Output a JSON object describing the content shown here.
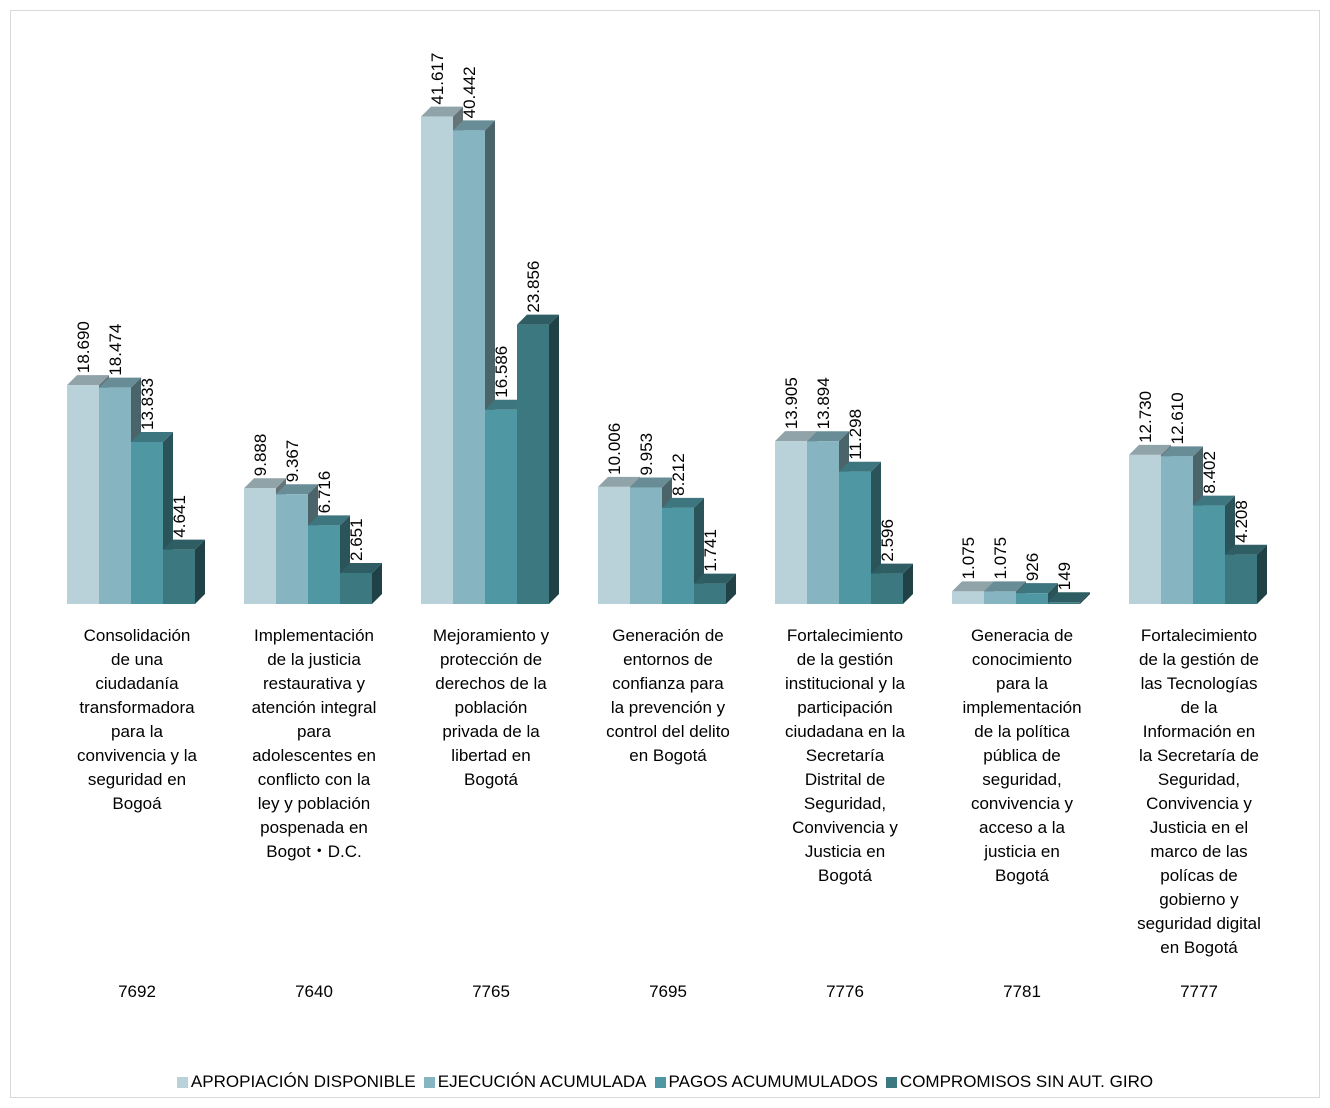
{
  "chart_data": {
    "type": "bar",
    "categories": [
      "Consolidación de una ciudadanía transformadora para la convivencia y la seguridad en Bogoá",
      "Implementación de la justicia restaurativa y atención integral para adolescentes en conflicto con la ley y población pospenada en Bogot・D.C.",
      "Mejoramiento y protección de derechos de la población privada de la libertad en Bogotá",
      "Generación de entornos de confianza para la prevención y control del delito en Bogotá",
      "Fortalecimiento de la gestión institucional y la participación ciudadana en la Secretaría Distrital de Seguridad, Convivencia y Justicia en Bogotá",
      "Generacia de conocimiento para la implementación de la política pública de seguridad, convivencia y acceso a la justicia en Bogotá",
      "Fortalecimiento de la gestión de las Tecnologías de la Información en la Secretaría de Seguridad, Convivencia y Justicia en el marco de las polícas de gobierno y seguridad digital en Bogotá"
    ],
    "category_lines": [
      [
        "Consolidación",
        "de una",
        "ciudadanía",
        "transformadora",
        "para la",
        "convivencia y la",
        "seguridad en",
        "Bogoá"
      ],
      [
        "Implementación",
        "de la justicia",
        "restaurativa y",
        "atención integral",
        "para",
        "adolescentes en",
        "conflicto con la",
        "ley y población",
        "pospenada en",
        "Bogot・D.C."
      ],
      [
        "Mejoramiento y",
        "protección de",
        "derechos de la",
        "población",
        "privada de la",
        "libertad en",
        "Bogotá"
      ],
      [
        "Generación de",
        "entornos de",
        "confianza para",
        "la prevención y",
        "control del delito",
        "en Bogotá"
      ],
      [
        "Fortalecimiento",
        "de la gestión",
        "institucional y la",
        "participación",
        "ciudadana en la",
        "Secretaría",
        "Distrital de",
        "Seguridad,",
        "Convivencia y",
        "Justicia en",
        "Bogotá"
      ],
      [
        "Generacia de",
        "conocimiento",
        "para la",
        "implementación",
        "de la política",
        "pública de",
        "seguridad,",
        "convivencia y",
        "acceso a la",
        "justicia en",
        "Bogotá"
      ],
      [
        "Fortalecimiento",
        "de la gestión de",
        "las Tecnologías",
        "de la",
        "Información en",
        "la Secretaría de",
        "Seguridad,",
        "Convivencia y",
        "Justicia en el",
        "marco de las",
        "polícas de",
        "gobierno y",
        "seguridad digital",
        "en Bogotá"
      ]
    ],
    "codes": [
      "7692",
      "7640",
      "7765",
      "7695",
      "7776",
      "7781",
      "7777"
    ],
    "series": [
      {
        "name": "APROPIACIÓN DISPONIBLE",
        "color": "#b9d1d8",
        "values": [
          18690,
          9888,
          41617,
          10006,
          13905,
          1075,
          12730
        ],
        "labels": [
          "18.690",
          "9.888",
          "41.617",
          "10.006",
          "13.905",
          "1.075",
          "12.730"
        ]
      },
      {
        "name": "EJECUCIÓN  ACUMULADA",
        "color": "#86b5c1",
        "values": [
          18474,
          9367,
          40442,
          9953,
          13894,
          1075,
          12610
        ],
        "labels": [
          "18.474",
          "9.367",
          "40.442",
          "9.953",
          "13.894",
          "1.075",
          "12.610"
        ]
      },
      {
        "name": "PAGOS ACUMUMULADOS",
        "color": "#4f97a3",
        "values": [
          13833,
          6716,
          16586,
          8212,
          11298,
          926,
          8402
        ],
        "labels": [
          "13.833",
          "6.716",
          "16.586",
          "8.212",
          "11.298",
          "926",
          "8.402"
        ]
      },
      {
        "name": "COMPROMISOS SIN AUT. GIRO",
        "color": "#3b7880",
        "values": [
          4641,
          2651,
          23856,
          1741,
          2596,
          149,
          4208
        ],
        "labels": [
          "4.641",
          "2.651",
          "23.856",
          "1.741",
          "2.596",
          "149",
          "4.208"
        ]
      }
    ],
    "ylim": [
      0,
      45000
    ],
    "grid": false,
    "legend_position": "bottom"
  }
}
